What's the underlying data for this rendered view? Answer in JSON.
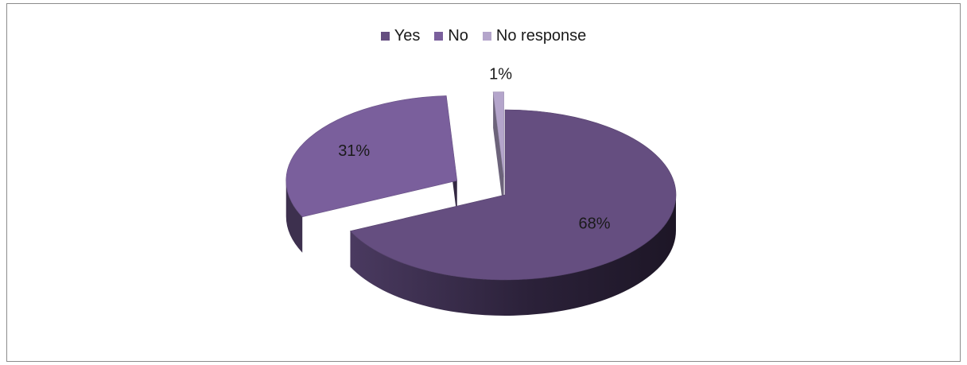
{
  "chart_data": {
    "type": "pie",
    "title": "",
    "legend_position": "top",
    "categories": [
      "Yes",
      "No",
      "No response"
    ],
    "values": [
      68,
      31,
      1
    ],
    "labels": [
      "68%",
      "31%",
      "1%"
    ],
    "colors": [
      "#654e80",
      "#7a5f9c",
      "#b4a5cb"
    ]
  }
}
